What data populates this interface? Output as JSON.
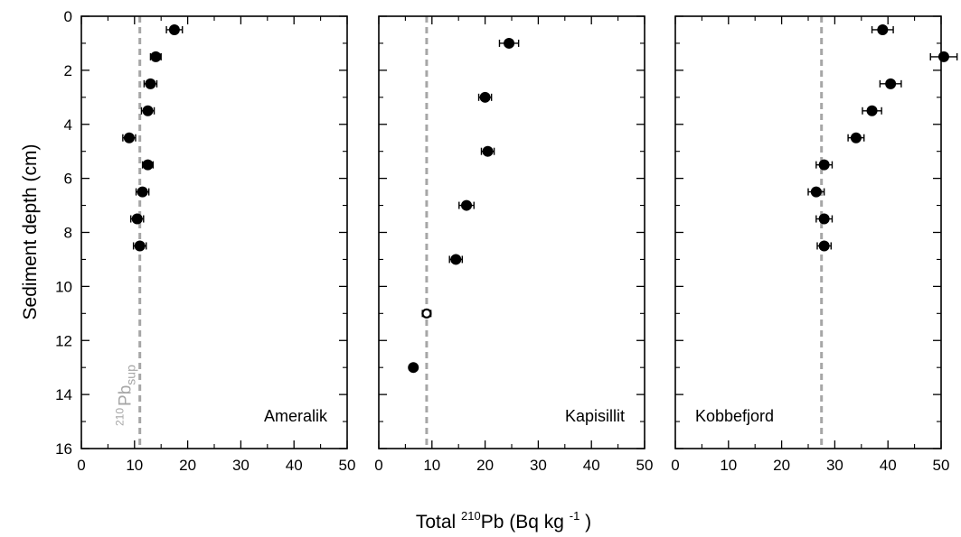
{
  "chart_data": [
    {
      "type": "scatter",
      "panel_label": "Ameralik",
      "supported_label": {
        "base": "Pb",
        "pre": "210",
        "sub": "sup"
      },
      "supported_value": 11,
      "xlim": [
        0,
        50
      ],
      "ylim": [
        0,
        16
      ],
      "y_inverted": true,
      "x_ticks": [
        0,
        10,
        20,
        30,
        40,
        50
      ],
      "y_ticks": [
        0,
        2,
        4,
        6,
        8,
        10,
        12,
        14,
        16
      ],
      "points": [
        {
          "x": 17.5,
          "y": 0.5,
          "xerr": 1.5
        },
        {
          "x": 14.0,
          "y": 1.5,
          "xerr": 1.0
        },
        {
          "x": 13.0,
          "y": 2.5,
          "xerr": 1.2
        },
        {
          "x": 12.5,
          "y": 3.5,
          "xerr": 1.2
        },
        {
          "x": 9.0,
          "y": 4.5,
          "xerr": 1.2
        },
        {
          "x": 12.5,
          "y": 5.5,
          "xerr": 1.0
        },
        {
          "x": 11.5,
          "y": 6.5,
          "xerr": 1.2
        },
        {
          "x": 10.5,
          "y": 7.5,
          "xerr": 1.2
        },
        {
          "x": 11.0,
          "y": 8.5,
          "xerr": 1.2
        }
      ]
    },
    {
      "type": "scatter",
      "panel_label": "Kapisillit",
      "supported_value": 9,
      "xlim": [
        0,
        50
      ],
      "ylim": [
        0,
        16
      ],
      "y_inverted": true,
      "x_ticks": [
        0,
        10,
        20,
        30,
        40,
        50
      ],
      "y_ticks": [
        0,
        2,
        4,
        6,
        8,
        10,
        12,
        14,
        16
      ],
      "points": [
        {
          "x": 24.5,
          "y": 1.0,
          "xerr": 1.8
        },
        {
          "x": 20.0,
          "y": 3.0,
          "xerr": 1.2
        },
        {
          "x": 20.5,
          "y": 5.0,
          "xerr": 1.2
        },
        {
          "x": 16.5,
          "y": 7.0,
          "xerr": 1.4
        },
        {
          "x": 14.5,
          "y": 9.0,
          "xerr": 1.2
        },
        {
          "x": 9.0,
          "y": 11.0,
          "xerr": 0.8,
          "open": true
        },
        {
          "x": 6.5,
          "y": 13.0,
          "xerr": 0.5
        }
      ]
    },
    {
      "type": "scatter",
      "panel_label": "Kobbefjord",
      "supported_value": 27.5,
      "xlim": [
        0,
        50
      ],
      "ylim": [
        0,
        16
      ],
      "y_inverted": true,
      "x_ticks": [
        0,
        10,
        20,
        30,
        40,
        50
      ],
      "y_ticks": [
        0,
        2,
        4,
        6,
        8,
        10,
        12,
        14,
        16
      ],
      "points": [
        {
          "x": 39.0,
          "y": 0.5,
          "xerr": 2.0
        },
        {
          "x": 50.5,
          "y": 1.5,
          "xerr": 2.5
        },
        {
          "x": 40.5,
          "y": 2.5,
          "xerr": 2.0
        },
        {
          "x": 37.0,
          "y": 3.5,
          "xerr": 1.8
        },
        {
          "x": 34.0,
          "y": 4.5,
          "xerr": 1.5
        },
        {
          "x": 28.0,
          "y": 5.5,
          "xerr": 1.5
        },
        {
          "x": 26.5,
          "y": 6.5,
          "xerr": 1.5
        },
        {
          "x": 28.0,
          "y": 7.5,
          "xerr": 1.5
        },
        {
          "x": 28.0,
          "y": 8.5,
          "xerr": 1.3
        }
      ]
    }
  ],
  "axes": {
    "ylabel": "Sediment depth (cm)",
    "xlabel": {
      "prefix": "Total ",
      "sup1": "210",
      "mid": "Pb (Bq kg ",
      "sup2": "-1",
      "suffix": " )"
    }
  },
  "colors": {
    "marker": "#000000",
    "axis": "#000000",
    "supported_line": "#a6a6a6",
    "supported_label": "#a6a6a6"
  }
}
